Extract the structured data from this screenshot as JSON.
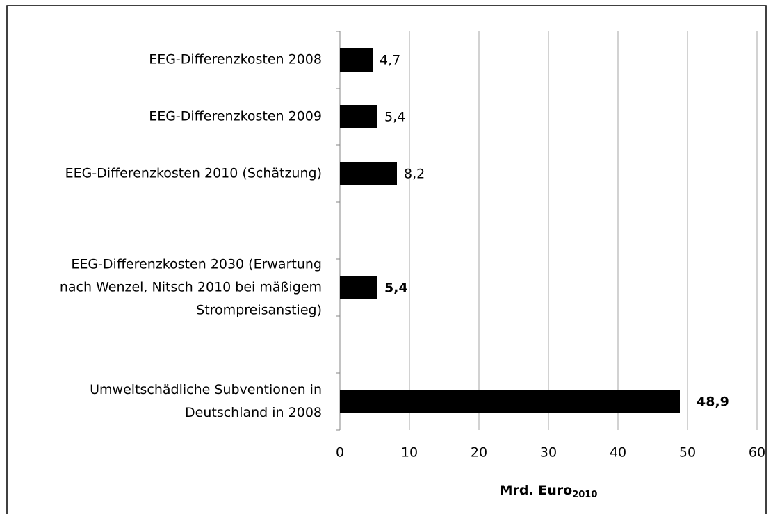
{
  "chart_data": {
    "type": "barh",
    "categories": [
      "EEG-Differenzkosten 2008",
      "EEG-Differenzkosten 2009",
      "EEG-Differenzkosten 2010 (Schätzung)",
      null,
      "EEG-Differenzkosten 2030 (Erwartung\nnach Wenzel, Nitsch 2010 bei mäßigem\nStrompreisanstieg)",
      null,
      "Umweltschädliche Subventionen in\nDeutschland in 2008"
    ],
    "values": [
      4.7,
      5.4,
      8.2,
      null,
      5.4,
      null,
      48.9
    ],
    "value_labels": [
      "4,7",
      "5,4",
      "8,2",
      null,
      "5,4",
      null,
      "48,9"
    ],
    "value_label_bold": [
      false,
      false,
      false,
      null,
      true,
      null,
      true
    ],
    "color": "#000000",
    "xlim": [
      0,
      60
    ],
    "xticks": [
      0,
      10,
      20,
      30,
      40,
      50,
      60
    ],
    "grid": true,
    "x_label": "Mrd. Euro",
    "x_label_subscript": "2010"
  }
}
